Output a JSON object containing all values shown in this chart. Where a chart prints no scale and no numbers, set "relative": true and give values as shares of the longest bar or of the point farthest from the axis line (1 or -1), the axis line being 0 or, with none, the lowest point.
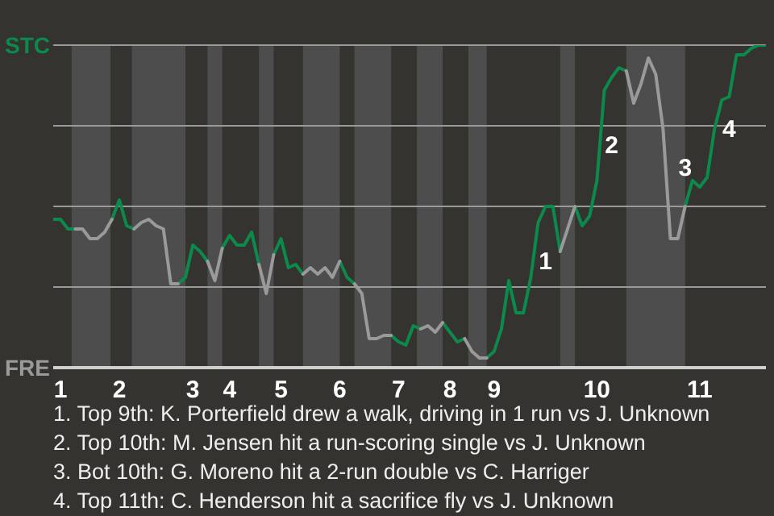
{
  "chart_data": {
    "type": "line",
    "relative": true,
    "categories": [
      null,
      "1",
      null,
      null,
      null,
      null,
      null,
      null,
      null,
      "2",
      null,
      null,
      null,
      null,
      null,
      null,
      null,
      null,
      null,
      "3",
      null,
      null,
      null,
      null,
      "4",
      null,
      null,
      null,
      null,
      null,
      null,
      "5",
      null,
      null,
      null,
      null,
      null,
      null,
      null,
      "6",
      null,
      null,
      null,
      null,
      null,
      null,
      null,
      "7",
      null,
      null,
      null,
      null,
      null,
      null,
      "8",
      null,
      null,
      null,
      null,
      null,
      "9",
      null,
      null,
      null,
      null,
      null,
      null,
      null,
      null,
      null,
      null,
      null,
      null,
      null,
      "10",
      null,
      null,
      null,
      null,
      null,
      null,
      null,
      null,
      null,
      null,
      null,
      null,
      null,
      "11",
      null,
      null,
      null,
      null,
      null,
      null,
      null,
      null,
      null
    ],
    "series": [
      {
        "color": "#0b8a4b",
        "values": [
          0.46,
          0.46,
          0.43,
          0.43,
          null,
          null,
          null,
          null,
          0.46,
          0.52,
          0.44,
          0.43,
          null,
          null,
          null,
          null,
          null,
          0.26,
          0.28,
          0.38,
          0.36,
          0.33,
          null,
          0.37,
          0.41,
          0.38,
          0.38,
          0.42,
          0.32,
          null,
          0.35,
          0.4,
          0.31,
          0.32,
          0.29,
          null,
          null,
          null,
          null,
          0.33,
          0.28,
          0.26,
          null,
          null,
          null,
          null,
          0.1,
          0.08,
          0.07,
          0.13,
          0.12,
          null,
          null,
          0.14,
          0.11,
          0.08,
          0.09,
          null,
          null,
          0.03,
          0.05,
          0.12,
          0.27,
          0.17,
          0.17,
          0.28,
          0.45,
          0.5,
          0.5,
          0.36,
          null,
          0.5,
          0.44,
          0.47,
          0.58,
          0.86,
          0.9,
          0.93,
          0.92,
          null,
          null,
          null,
          null,
          null,
          null,
          null,
          0.5,
          0.58,
          0.56,
          0.59,
          0.74,
          0.83,
          0.84,
          0.97,
          0.97,
          0.99,
          1,
          1
        ]
      },
      {
        "color": "#9a9a9a",
        "values": [
          null,
          null,
          null,
          0.43,
          0.43,
          0.4,
          0.4,
          0.42,
          0.46,
          null,
          null,
          0.43,
          0.45,
          0.46,
          0.44,
          0.43,
          0.26,
          0.26,
          null,
          null,
          null,
          0.33,
          0.27,
          0.37,
          null,
          null,
          null,
          null,
          0.32,
          0.23,
          0.35,
          null,
          null,
          null,
          0.29,
          0.31,
          0.29,
          0.31,
          0.28,
          0.33,
          null,
          0.26,
          0.23,
          0.09,
          0.09,
          0.1,
          0.1,
          null,
          null,
          null,
          0.12,
          0.13,
          0.11,
          0.14,
          null,
          null,
          0.09,
          0.05,
          0.03,
          0.03,
          null,
          null,
          null,
          null,
          null,
          null,
          null,
          null,
          null,
          0.36,
          0.43,
          0.5,
          null,
          null,
          null,
          null,
          null,
          null,
          0.92,
          0.82,
          0.88,
          0.96,
          0.91,
          0.74,
          0.4,
          0.4,
          0.5,
          null,
          null,
          null,
          null,
          null,
          null,
          null,
          null,
          null,
          null,
          null
        ]
      }
    ],
    "grid": "y",
    "annotations": [
      "STC",
      "FRE",
      "1",
      "2",
      "3",
      "4",
      "1. Top 9th: K. Porterfield drew a walk, driving in 1 run vs J. Unknown",
      "2. Top 10th: M. Jensen hit a run-scoring single vs J. Unknown",
      "3. Bot 10th: G. Moreno hit a 2-run double vs C. Harriger",
      "4. Top 11th: C. Henderson hit a sacrifice fly vs J. Unknown"
    ]
  }
}
